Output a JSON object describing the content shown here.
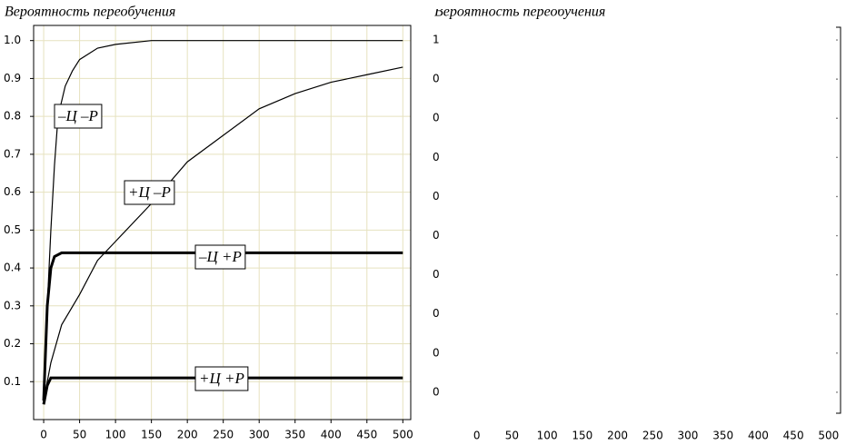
{
  "chart_data": [
    {
      "type": "line",
      "title": "Вероятность переобучения",
      "xlim": [
        -14,
        511
      ],
      "ylim": [
        0,
        1.04
      ],
      "xticks": [
        0,
        50,
        100,
        150,
        200,
        250,
        300,
        350,
        400,
        450,
        500
      ],
      "yticks": [
        {
          "value": 0.1,
          "label": "0.1"
        },
        {
          "value": 0.2,
          "label": "0.2"
        },
        {
          "value": 0.3,
          "label": "0.3"
        },
        {
          "value": 0.4,
          "label": "0.4"
        },
        {
          "value": 0.5,
          "label": "0.5"
        },
        {
          "value": 0.6,
          "label": "0.6"
        },
        {
          "value": 0.7,
          "label": "0.7"
        },
        {
          "value": 0.8,
          "label": "0.8"
        },
        {
          "value": 0.9,
          "label": "0.9"
        },
        {
          "value": 1.0,
          "label": "1.0"
        }
      ],
      "grid": true,
      "series": [
        {
          "name": "–Ц –Р",
          "color": "#000000",
          "width": 1.2,
          "x": [
            0,
            5,
            10,
            15,
            20,
            30,
            40,
            50,
            75,
            100,
            150,
            500
          ],
          "values": [
            0.05,
            0.3,
            0.5,
            0.67,
            0.8,
            0.88,
            0.92,
            0.95,
            0.98,
            0.99,
            1.0,
            1.0
          ]
        },
        {
          "name": "+Ц –Р",
          "color": "#000000",
          "width": 1.2,
          "x": [
            0,
            10,
            25,
            50,
            75,
            100,
            150,
            200,
            250,
            300,
            350,
            400,
            450,
            500
          ],
          "values": [
            0.05,
            0.15,
            0.25,
            0.33,
            0.42,
            0.47,
            0.57,
            0.68,
            0.75,
            0.82,
            0.86,
            0.89,
            0.91,
            0.93
          ]
        },
        {
          "name": "–Ц +Р",
          "color": "#000000",
          "width": 3,
          "x": [
            0,
            5,
            10,
            15,
            25,
            500
          ],
          "values": [
            0.05,
            0.3,
            0.4,
            0.43,
            0.44,
            0.44
          ]
        },
        {
          "name": "+Ц +Р",
          "color": "#000000",
          "width": 3,
          "x": [
            0,
            5,
            10,
            500
          ],
          "values": [
            0.04,
            0.09,
            0.11,
            0.11
          ]
        }
      ]
    },
    {
      "type": "empty",
      "title": "Вероятность переобучения",
      "xlim": [
        -19,
        517
      ],
      "xticks": [
        0,
        50,
        100,
        150,
        200,
        250,
        300,
        350,
        400,
        450,
        500
      ],
      "y_labels": [
        "1",
        "0",
        "0",
        "0",
        "0",
        "0",
        "0",
        "0",
        "0",
        "0"
      ]
    }
  ]
}
